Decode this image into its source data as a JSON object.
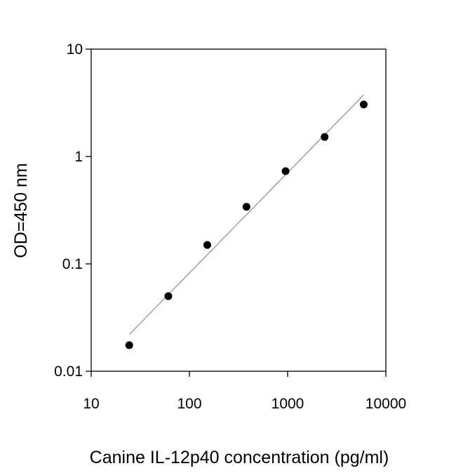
{
  "chart_data": {
    "type": "scatter",
    "title": "",
    "xlabel": "Canine IL-12p40 concentration (pg/ml)",
    "ylabel": "OD=450 nm",
    "xscale": "log",
    "yscale": "log",
    "xlim": [
      10,
      10000
    ],
    "ylim": [
      0.01,
      10
    ],
    "x_ticks": [
      "10",
      "100",
      "1000",
      "10000"
    ],
    "y_ticks": [
      "0.01",
      "0.1",
      "1",
      "10"
    ],
    "grid": false,
    "legend": "none",
    "series": [
      {
        "points": [
          {
            "x": 24.4,
            "y": 0.0175
          },
          {
            "x": 61,
            "y": 0.05
          },
          {
            "x": 152,
            "y": 0.15
          },
          {
            "x": 381,
            "y": 0.34
          },
          {
            "x": 953,
            "y": 0.73
          },
          {
            "x": 2381,
            "y": 1.52
          },
          {
            "x": 5953,
            "y": 3.05
          }
        ]
      }
    ],
    "trendline": {
      "type": "linear-log-log",
      "x_start": 24.4,
      "x_end": 5953,
      "y_start": 0.022,
      "y_end": 3.75
    },
    "colors": {
      "marker": "#000000",
      "trendline": "#8c8c8c",
      "axis": "#000000"
    }
  }
}
